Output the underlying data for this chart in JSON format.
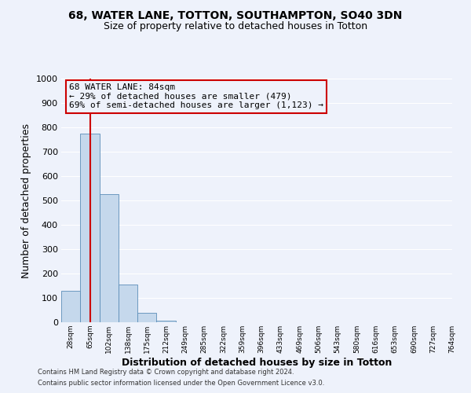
{
  "title1": "68, WATER LANE, TOTTON, SOUTHAMPTON, SO40 3DN",
  "title2": "Size of property relative to detached houses in Totton",
  "xlabel": "Distribution of detached houses by size in Totton",
  "ylabel": "Number of detached properties",
  "bin_labels": [
    "28sqm",
    "65sqm",
    "102sqm",
    "138sqm",
    "175sqm",
    "212sqm",
    "249sqm",
    "285sqm",
    "322sqm",
    "359sqm",
    "396sqm",
    "433sqm",
    "469sqm",
    "506sqm",
    "543sqm",
    "580sqm",
    "616sqm",
    "653sqm",
    "690sqm",
    "727sqm",
    "764sqm"
  ],
  "bar_values": [
    130,
    775,
    525,
    155,
    38,
    5,
    0,
    0,
    0,
    0,
    0,
    0,
    0,
    0,
    0,
    0,
    0,
    0,
    0,
    0
  ],
  "bar_color": "#c5d8ec",
  "bar_edge_color": "#5b8db8",
  "vline_color": "#cc0000",
  "annotation_line1": "68 WATER LANE: 84sqm",
  "annotation_line2": "← 29% of detached houses are smaller (479)",
  "annotation_line3": "69% of semi-detached houses are larger (1,123) →",
  "annotation_box_color": "#cc0000",
  "ylim": [
    0,
    1000
  ],
  "yticks": [
    0,
    100,
    200,
    300,
    400,
    500,
    600,
    700,
    800,
    900,
    1000
  ],
  "footer1": "Contains HM Land Registry data © Crown copyright and database right 2024.",
  "footer2": "Contains public sector information licensed under the Open Government Licence v3.0.",
  "background_color": "#eef2fb",
  "grid_color": "#ffffff"
}
